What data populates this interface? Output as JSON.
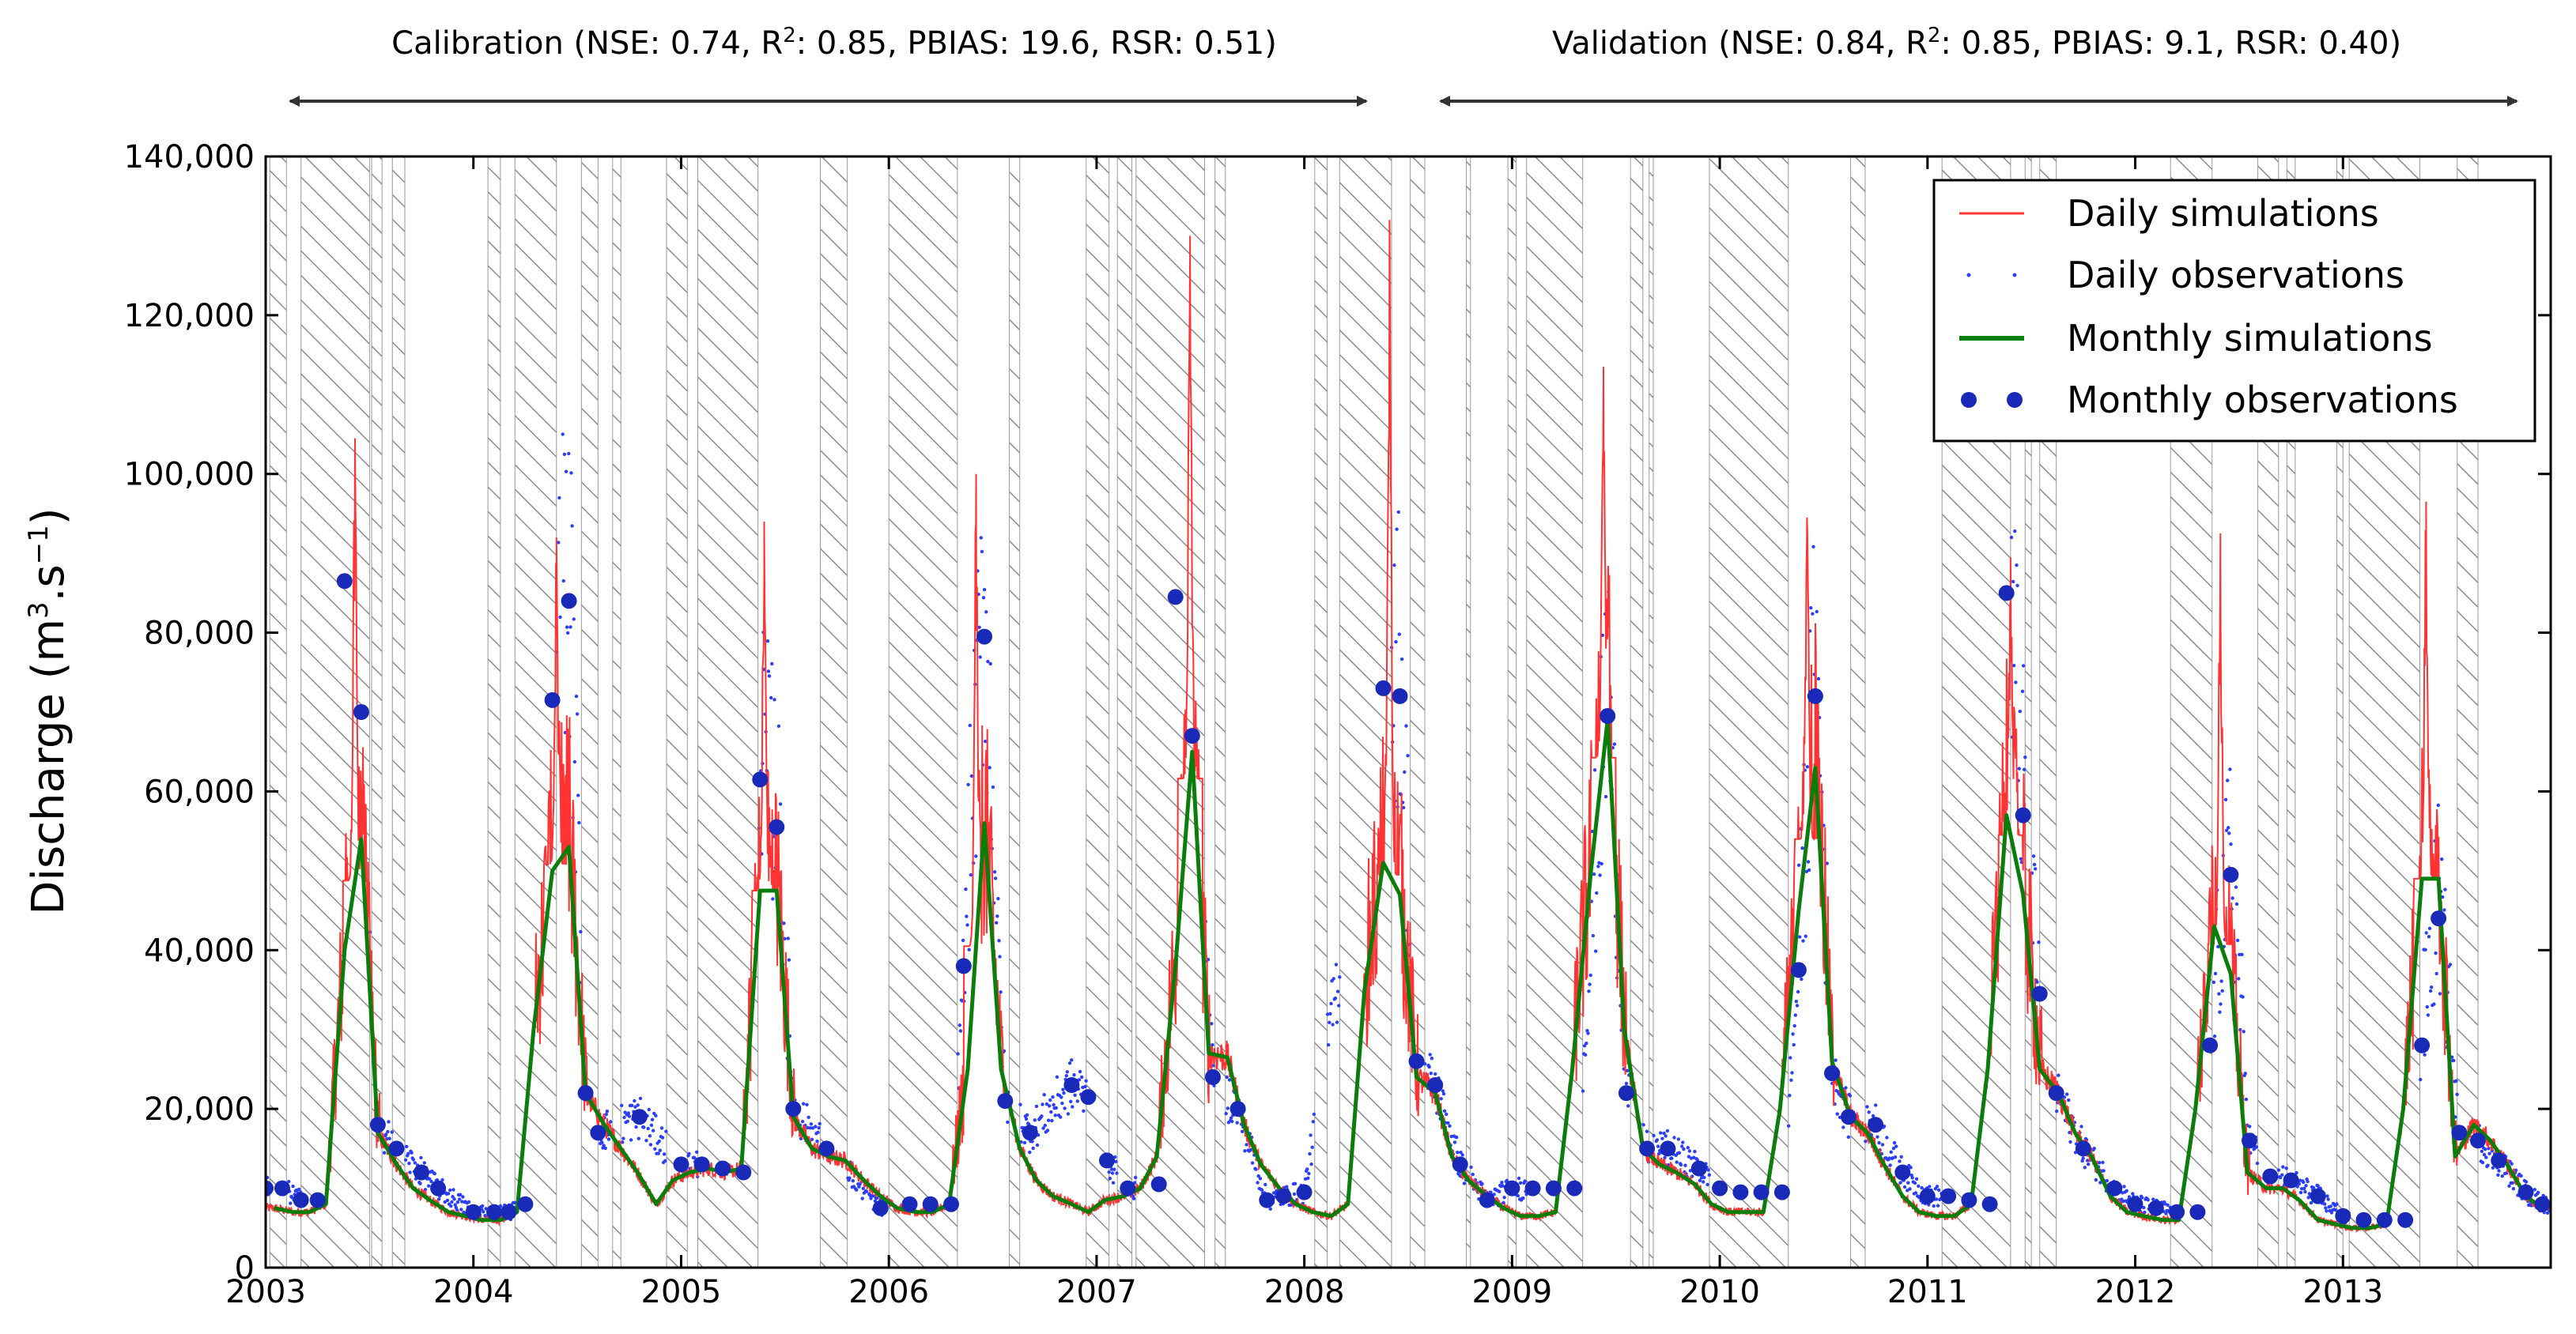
{
  "chart_data": {
    "type": "line",
    "title": "",
    "xlabel": "",
    "ylabel": "Discharge (m³.s⁻¹)",
    "ylabel_parts": {
      "prefix": "Discharge (m",
      "sup1": "3",
      "mid": ".s",
      "sup2": "−1",
      "suffix": ")"
    },
    "xlim": [
      2003.0,
      2014.0
    ],
    "ylim": [
      0,
      140000
    ],
    "x_ticks": [
      2003,
      2004,
      2005,
      2006,
      2007,
      2008,
      2009,
      2010,
      2011,
      2012,
      2013
    ],
    "x_tick_labels": [
      "2003",
      "2004",
      "2005",
      "2006",
      "2007",
      "2008",
      "2009",
      "2010",
      "2011",
      "2012",
      "2013"
    ],
    "y_ticks": [
      0,
      20000,
      40000,
      60000,
      80000,
      100000,
      120000,
      140000
    ],
    "y_tick_labels": [
      "0",
      "20,000",
      "40,000",
      "60,000",
      "80,000",
      "100,000",
      "120,000",
      "140,000"
    ],
    "periods": [
      {
        "name": "calibration",
        "range": [
          2003.0,
          2008.5
        ],
        "label_prefix": "Calibration (NSE: 0.74, R",
        "label_sup": "2",
        "label_suffix": ": 0.85, PBIAS: 19.6, RSR: 0.51)"
      },
      {
        "name": "validation",
        "range": [
          2008.5,
          2014.0
        ],
        "label_prefix": "Validation (NSE: 0.84, R",
        "label_sup": "2",
        "label_suffix": ": 0.85, PBIAS: 9.1, RSR: 0.40)"
      }
    ],
    "legend": {
      "position": "upper-right",
      "entries": [
        {
          "label": "Daily simulations",
          "style": "line",
          "color": "#ff3333"
        },
        {
          "label": "Daily observations",
          "style": "small-marker",
          "color": "#2a3fff"
        },
        {
          "label": "Monthly simulations",
          "style": "line",
          "color": "#0a7d0a"
        },
        {
          "label": "Monthly observations",
          "style": "dot",
          "color": "#1a2ab8"
        }
      ]
    },
    "hatched_intervals_desc": "Hatched bands mark periods without observations (approximate, in decimal years)",
    "hatched_intervals": [
      [
        2003.02,
        2003.1
      ],
      [
        2003.17,
        2003.5
      ],
      [
        2003.51,
        2003.56
      ],
      [
        2003.61,
        2003.67
      ],
      [
        2004.07,
        2004.13
      ],
      [
        2004.2,
        2004.4
      ],
      [
        2004.52,
        2004.6
      ],
      [
        2004.67,
        2004.71
      ],
      [
        2004.93,
        2005.03
      ],
      [
        2005.08,
        2005.37
      ],
      [
        2005.67,
        2005.8
      ],
      [
        2006.0,
        2006.33
      ],
      [
        2006.58,
        2006.63
      ],
      [
        2006.95,
        2007.06
      ],
      [
        2007.1,
        2007.17
      ],
      [
        2007.19,
        2007.52
      ],
      [
        2007.57,
        2007.62
      ],
      [
        2008.05,
        2008.11
      ],
      [
        2008.17,
        2008.42
      ],
      [
        2008.51,
        2008.58
      ],
      [
        2008.78,
        2008.8
      ],
      [
        2008.98,
        2009.02
      ],
      [
        2009.07,
        2009.34
      ],
      [
        2009.57,
        2009.63
      ],
      [
        2009.66,
        2009.68
      ],
      [
        2009.95,
        2010.33
      ],
      [
        2010.63,
        2010.7
      ],
      [
        2011.07,
        2011.4
      ],
      [
        2011.47,
        2011.5
      ],
      [
        2011.54,
        2011.62
      ],
      [
        2012.17,
        2012.37
      ],
      [
        2012.59,
        2012.69
      ],
      [
        2012.73,
        2012.77
      ],
      [
        2012.97,
        2013.0
      ],
      [
        2013.03,
        2013.37
      ],
      [
        2013.55,
        2013.65
      ]
    ],
    "series": [
      {
        "name": "Monthly simulations",
        "color": "#0a7d0a",
        "x": [
          2003.04,
          2003.13,
          2003.21,
          2003.29,
          2003.38,
          2003.46,
          2003.54,
          2003.63,
          2003.71,
          2003.79,
          2003.88,
          2003.96,
          2004.04,
          2004.13,
          2004.21,
          2004.29,
          2004.38,
          2004.46,
          2004.54,
          2004.63,
          2004.71,
          2004.79,
          2004.88,
          2004.96,
          2005.04,
          2005.13,
          2005.21,
          2005.29,
          2005.38,
          2005.46,
          2005.54,
          2005.63,
          2005.71,
          2005.79,
          2005.88,
          2005.96,
          2006.04,
          2006.13,
          2006.21,
          2006.29,
          2006.38,
          2006.46,
          2006.54,
          2006.63,
          2006.71,
          2006.79,
          2006.88,
          2006.96,
          2007.04,
          2007.13,
          2007.21,
          2007.29,
          2007.38,
          2007.46,
          2007.54,
          2007.63,
          2007.71,
          2007.79,
          2007.88,
          2007.96,
          2008.04,
          2008.13,
          2008.21,
          2008.29,
          2008.38,
          2008.46,
          2008.54,
          2008.63,
          2008.71,
          2008.79,
          2008.88,
          2008.96,
          2009.04,
          2009.13,
          2009.21,
          2009.29,
          2009.38,
          2009.46,
          2009.54,
          2009.63,
          2009.71,
          2009.79,
          2009.88,
          2009.96,
          2010.04,
          2010.13,
          2010.21,
          2010.29,
          2010.38,
          2010.46,
          2010.54,
          2010.63,
          2010.71,
          2010.79,
          2010.88,
          2010.96,
          2011.04,
          2011.13,
          2011.21,
          2011.29,
          2011.38,
          2011.46,
          2011.54,
          2011.63,
          2011.71,
          2011.79,
          2011.88,
          2011.96,
          2012.04,
          2012.13,
          2012.21,
          2012.29,
          2012.38,
          2012.46,
          2012.54,
          2012.63,
          2012.71,
          2012.79,
          2012.88,
          2012.96,
          2013.04,
          2013.13,
          2013.21,
          2013.29,
          2013.38,
          2013.46,
          2013.54,
          2013.63,
          2013.71,
          2013.79,
          2013.88,
          2013.96
        ],
        "values": [
          7500,
          7000,
          7000,
          8000,
          40000,
          54000,
          17000,
          13000,
          10000,
          8500,
          7000,
          6500,
          6000,
          6000,
          7000,
          30000,
          50000,
          53000,
          22000,
          18000,
          15000,
          12000,
          8000,
          11000,
          12000,
          12500,
          12000,
          12500,
          47500,
          47500,
          19000,
          15000,
          14000,
          13500,
          11000,
          9000,
          7500,
          7000,
          7000,
          8000,
          25000,
          56000,
          25000,
          15000,
          11000,
          9000,
          8000,
          7000,
          8500,
          9000,
          10000,
          14000,
          38000,
          65000,
          27000,
          26500,
          18000,
          13000,
          10000,
          8000,
          7000,
          6500,
          8000,
          35000,
          51000,
          47000,
          24000,
          22000,
          14000,
          11000,
          9000,
          7500,
          6500,
          6500,
          7000,
          25000,
          50000,
          69000,
          30000,
          15000,
          13000,
          12000,
          10500,
          8000,
          7000,
          7000,
          7000,
          20000,
          45000,
          63000,
          26000,
          19000,
          17000,
          13000,
          9000,
          7000,
          6500,
          6500,
          8000,
          25000,
          57000,
          47000,
          25000,
          22000,
          17000,
          14000,
          9000,
          7000,
          6500,
          6000,
          6000,
          20000,
          43000,
          37000,
          12000,
          10000,
          10000,
          8500,
          6000,
          5500,
          5000,
          5000,
          5500,
          20000,
          49000,
          49000,
          14000,
          18000,
          16000,
          13000,
          9000,
          7500
        ]
      },
      {
        "name": "Monthly observations",
        "color": "#1a2ab8",
        "x": [
          2003.0,
          2003.08,
          2003.17,
          2003.25,
          2003.38,
          2003.46,
          2003.54,
          2003.63,
          2003.75,
          2003.83,
          2004.0,
          2004.1,
          2004.17,
          2004.25,
          2004.38,
          2004.46,
          2004.54,
          2004.6,
          2004.8,
          2005.0,
          2005.1,
          2005.2,
          2005.3,
          2005.38,
          2005.46,
          2005.54,
          2005.7,
          2005.96,
          2006.1,
          2006.2,
          2006.3,
          2006.36,
          2006.46,
          2006.56,
          2006.68,
          2006.88,
          2006.96,
          2007.05,
          2007.15,
          2007.3,
          2007.38,
          2007.46,
          2007.56,
          2007.68,
          2007.82,
          2007.9,
          2008.0,
          2008.38,
          2008.46,
          2008.54,
          2008.63,
          2008.75,
          2008.88,
          2009.0,
          2009.1,
          2009.2,
          2009.3,
          2009.46,
          2009.55,
          2009.65,
          2009.75,
          2009.9,
          2010.0,
          2010.1,
          2010.2,
          2010.3,
          2010.38,
          2010.46,
          2010.54,
          2010.62,
          2010.75,
          2010.88,
          2011.0,
          2011.1,
          2011.2,
          2011.3,
          2011.38,
          2011.46,
          2011.54,
          2011.62,
          2011.75,
          2011.9,
          2012.0,
          2012.1,
          2012.2,
          2012.3,
          2012.36,
          2012.46,
          2012.55,
          2012.65,
          2012.75,
          2012.88,
          2013.0,
          2013.1,
          2013.2,
          2013.3,
          2013.38,
          2013.46,
          2013.56,
          2013.65,
          2013.75,
          2013.88,
          2013.96
        ],
        "values": [
          10000,
          10000,
          8500,
          8500,
          86500,
          70000,
          18000,
          15000,
          12000,
          10000,
          7000,
          7000,
          7000,
          8000,
          71500,
          84000,
          22000,
          17000,
          19000,
          13000,
          13000,
          12500,
          12000,
          61500,
          55500,
          20000,
          15000,
          7500,
          8000,
          8000,
          8000,
          38000,
          79500,
          21000,
          17000,
          23000,
          21500,
          13500,
          10000,
          10500,
          84500,
          67000,
          24000,
          20000,
          8500,
          9000,
          9500,
          73000,
          72000,
          26000,
          23000,
          13000,
          8500,
          10000,
          10000,
          10000,
          10000,
          69500,
          22000,
          15000,
          15000,
          12500,
          10000,
          9500,
          9500,
          9500,
          37500,
          72000,
          24500,
          19000,
          18000,
          12000,
          9000,
          9000,
          8500,
          8000,
          85000,
          57000,
          34500,
          22000,
          15000,
          10000,
          8000,
          7500,
          7000,
          7000,
          28000,
          49500,
          16000,
          11500,
          11000,
          9000,
          6500,
          6000,
          6000,
          6000,
          28000,
          44000,
          17000,
          16000,
          13500,
          9500,
          8000
        ]
      }
    ],
    "daily_note": "Daily simulation (red) and daily observation (blue) curves are drawn as dense series derived from the monthly profiles with annual flood peaks shown below.",
    "daily_peaks": [
      {
        "x": 2003.43,
        "y": 104500
      },
      {
        "x": 2004.4,
        "y": 92000
      },
      {
        "x": 2005.4,
        "y": 94000
      },
      {
        "x": 2006.42,
        "y": 100000
      },
      {
        "x": 2007.45,
        "y": 130000
      },
      {
        "x": 2008.41,
        "y": 132000
      },
      {
        "x": 2009.44,
        "y": 113500
      },
      {
        "x": 2010.42,
        "y": 94500
      },
      {
        "x": 2011.4,
        "y": 89500
      },
      {
        "x": 2012.41,
        "y": 92500
      },
      {
        "x": 2013.4,
        "y": 96500
      }
    ]
  }
}
